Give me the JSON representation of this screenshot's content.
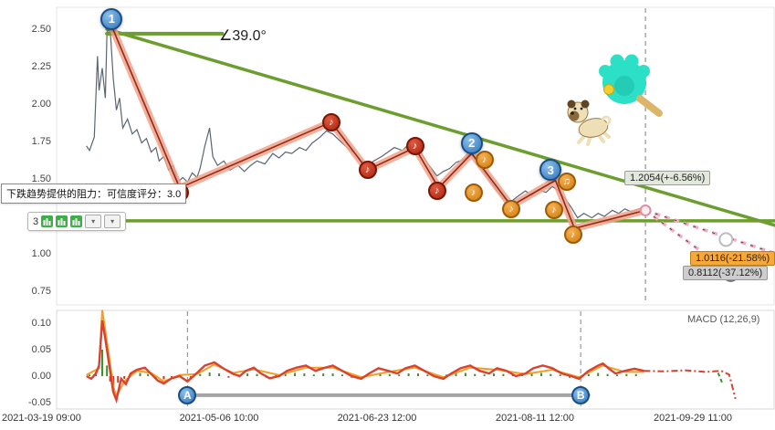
{
  "labels": {
    "tooltip": "下跌趋势提供的阻力：可信度评分：3.0",
    "angle": "∠39.0°",
    "toolbar_count": "3",
    "tag_trend": "1.2054(+-6.56%)",
    "tag_orange": "1.0116(-21.58%)",
    "tag_gray": "0.8112(-37.12%)"
  },
  "colors": {
    "green_line": "#6b9e2e",
    "price_line": "#5a6572",
    "zigzag_fill": "#f2a18b",
    "zigzag_core": "#8f2c15",
    "blue_marker": "#3f8fd2",
    "red_marker": "#c2301a",
    "orange_marker": "#e88e1e",
    "macd_red": "#d84331",
    "macd_orange": "#f59d23",
    "hist_green": "#3f8f2b",
    "hist_red": "#c43a22",
    "dashed_pink": "#f3afc1"
  },
  "chart_data": {
    "type": "line",
    "x_axis": {
      "tick_labels": [
        "2021-03-19 09:00",
        "2021-05-06 10:00",
        "2021-06-23 12:00",
        "2021-08-11 12:00",
        "2021-09-29 11:00"
      ]
    },
    "main_panel": {
      "ylim": [
        0.65,
        2.65
      ],
      "y_ticks": [
        2.5,
        2.25,
        2.0,
        1.75,
        1.5,
        1.25,
        1.0,
        0.75
      ],
      "price_series": [
        [
          0.16,
          1.72
        ],
        [
          0.18,
          1.69
        ],
        [
          0.21,
          1.78
        ],
        [
          0.23,
          2.32
        ],
        [
          0.24,
          2.09
        ],
        [
          0.26,
          2.24
        ],
        [
          0.28,
          2.04
        ],
        [
          0.29,
          2.48
        ],
        [
          0.31,
          2.51
        ],
        [
          0.33,
          2.17
        ],
        [
          0.35,
          1.96
        ],
        [
          0.37,
          2.04
        ],
        [
          0.39,
          1.84
        ],
        [
          0.42,
          1.9
        ],
        [
          0.45,
          1.8
        ],
        [
          0.48,
          1.83
        ],
        [
          0.51,
          1.74
        ],
        [
          0.54,
          1.77
        ],
        [
          0.57,
          1.68
        ],
        [
          0.6,
          1.71
        ],
        [
          0.62,
          1.62
        ],
        [
          0.65,
          1.65
        ],
        [
          0.68,
          1.56
        ],
        [
          0.71,
          1.59
        ],
        [
          0.74,
          1.48
        ],
        [
          0.77,
          1.51
        ],
        [
          0.8,
          1.48
        ],
        [
          0.83,
          1.54
        ],
        [
          0.86,
          1.51
        ],
        [
          0.88,
          1.57
        ],
        [
          0.91,
          1.72
        ],
        [
          0.94,
          1.84
        ],
        [
          0.96,
          1.65
        ],
        [
          0.99,
          1.59
        ],
        [
          1.03,
          1.62
        ],
        [
          1.07,
          1.56
        ],
        [
          1.12,
          1.59
        ],
        [
          1.16,
          1.55
        ],
        [
          1.2,
          1.59
        ],
        [
          1.24,
          1.62
        ],
        [
          1.29,
          1.6
        ],
        [
          1.34,
          1.67
        ],
        [
          1.38,
          1.64
        ],
        [
          1.42,
          1.68
        ],
        [
          1.46,
          1.67
        ],
        [
          1.51,
          1.71
        ],
        [
          1.55,
          1.69
        ],
        [
          1.59,
          1.74
        ],
        [
          1.64,
          1.78
        ],
        [
          1.68,
          1.82
        ],
        [
          1.72,
          1.8
        ],
        [
          1.76,
          1.76
        ],
        [
          1.81,
          1.71
        ],
        [
          1.86,
          1.67
        ],
        [
          1.9,
          1.62
        ],
        [
          1.94,
          1.59
        ],
        [
          1.98,
          1.62
        ],
        [
          2.03,
          1.65
        ],
        [
          2.07,
          1.68
        ],
        [
          2.11,
          1.71
        ],
        [
          2.16,
          1.69
        ],
        [
          2.2,
          1.73
        ],
        [
          2.24,
          1.71
        ],
        [
          2.28,
          1.67
        ],
        [
          2.33,
          1.59
        ],
        [
          2.38,
          1.52
        ],
        [
          2.42,
          1.55
        ],
        [
          2.46,
          1.57
        ],
        [
          2.5,
          1.61
        ],
        [
          2.55,
          1.63
        ],
        [
          2.59,
          1.67
        ],
        [
          2.63,
          1.62
        ],
        [
          2.68,
          1.54
        ],
        [
          2.72,
          1.48
        ],
        [
          2.76,
          1.42
        ],
        [
          2.8,
          1.37
        ],
        [
          2.85,
          1.35
        ],
        [
          2.9,
          1.39
        ],
        [
          2.94,
          1.42
        ],
        [
          2.98,
          1.39
        ],
        [
          3.02,
          1.43
        ],
        [
          3.07,
          1.41
        ],
        [
          3.11,
          1.45
        ],
        [
          3.15,
          1.42
        ],
        [
          3.19,
          1.37
        ],
        [
          3.23,
          1.31
        ],
        [
          3.27,
          1.24
        ],
        [
          3.31,
          1.27
        ],
        [
          3.36,
          1.24
        ],
        [
          3.4,
          1.27
        ],
        [
          3.44,
          1.25
        ],
        [
          3.49,
          1.29
        ],
        [
          3.53,
          1.27
        ],
        [
          3.57,
          1.3
        ],
        [
          3.61,
          1.28
        ],
        [
          3.66,
          1.3
        ],
        [
          3.7,
          1.31
        ]
      ],
      "zigzag_series": [
        [
          0.32,
          2.52
        ],
        [
          0.75,
          1.44
        ],
        [
          1.71,
          1.88
        ],
        [
          1.94,
          1.56
        ],
        [
          2.24,
          1.71
        ],
        [
          2.39,
          1.44
        ],
        [
          2.6,
          1.67
        ],
        [
          2.85,
          1.32
        ],
        [
          3.13,
          1.49
        ],
        [
          3.25,
          1.17
        ],
        [
          3.7,
          1.29
        ]
      ],
      "trend_lines": {
        "top_horizontal": {
          "from": [
            0.29,
            2.47
          ],
          "to": [
            1.02,
            2.47
          ]
        },
        "descending": {
          "from": [
            0.29,
            2.5
          ],
          "to": [
            4.52,
            1.19
          ]
        },
        "support": {
          "from": [
            -0.18,
            1.22
          ],
          "to": [
            4.52,
            1.22
          ]
        }
      },
      "projections": {
        "upper": {
          "from": [
            3.7,
            1.29
          ],
          "to": [
            4.5,
            1.01
          ]
        },
        "lower": {
          "from": [
            3.7,
            1.29
          ],
          "to": [
            4.24,
            0.87
          ]
        }
      },
      "projection_targets": {
        "upper": {
          "u": 4.21,
          "price": 1.095
        },
        "lower": {
          "u": 4.24,
          "price": 0.87
        }
      },
      "current_time_u": 3.7,
      "markers": {
        "numbered": [
          {
            "label": "1",
            "u": 0.32,
            "price": 2.57
          },
          {
            "label": "2",
            "u": 2.6,
            "price": 1.74
          },
          {
            "label": "3",
            "u": 3.1,
            "price": 1.56
          }
        ],
        "red_notes": [
          {
            "symbol": "♪",
            "u": 0.75,
            "price": 1.41
          },
          {
            "symbol": "♪",
            "u": 1.71,
            "price": 1.88
          },
          {
            "symbol": "♪",
            "u": 1.94,
            "price": 1.56
          },
          {
            "symbol": "♪",
            "u": 2.24,
            "price": 1.72
          },
          {
            "symbol": "♪",
            "u": 2.38,
            "price": 1.42
          }
        ],
        "orange_notes": [
          {
            "symbol": "♪",
            "u": 2.61,
            "price": 1.41
          },
          {
            "symbol": "♪",
            "u": 2.68,
            "price": 1.63
          },
          {
            "symbol": "♪",
            "u": 2.85,
            "price": 1.3
          },
          {
            "symbol": "♪",
            "u": 3.12,
            "price": 1.29
          },
          {
            "symbol": "♫",
            "u": 3.2,
            "price": 1.48
          },
          {
            "symbol": "♪",
            "u": 3.24,
            "price": 1.13
          }
        ]
      }
    },
    "macd_panel": {
      "label": "MACD (12,26,9)",
      "ylim": [
        -0.075,
        0.135
      ],
      "y_ticks": [
        0.1,
        0.05,
        0.0,
        -0.05
      ],
      "dea_line": [
        [
          0.16,
          0.0
        ],
        [
          0.19,
          -0.005
        ],
        [
          0.22,
          0.005
        ],
        [
          0.24,
          0.02
        ],
        [
          0.26,
          0.105
        ],
        [
          0.28,
          0.07
        ],
        [
          0.31,
          0.01
        ],
        [
          0.33,
          -0.03
        ],
        [
          0.35,
          -0.045
        ],
        [
          0.38,
          -0.005
        ],
        [
          0.41,
          -0.015
        ],
        [
          0.44,
          0.005
        ],
        [
          0.48,
          0.012
        ],
        [
          0.53,
          0.016
        ],
        [
          0.57,
          0.004
        ],
        [
          0.61,
          -0.008
        ],
        [
          0.65,
          -0.014
        ],
        [
          0.7,
          -0.004
        ],
        [
          0.75,
          0.0
        ],
        [
          0.8,
          -0.01
        ],
        [
          0.86,
          0.006
        ],
        [
          0.91,
          0.02
        ],
        [
          0.97,
          0.026
        ],
        [
          1.03,
          0.014
        ],
        [
          1.09,
          0.004
        ],
        [
          1.13,
          0.0
        ],
        [
          1.17,
          0.01
        ],
        [
          1.22,
          0.016
        ],
        [
          1.26,
          0.006
        ],
        [
          1.32,
          -0.004
        ],
        [
          1.38,
          0.0
        ],
        [
          1.43,
          0.01
        ],
        [
          1.49,
          0.016
        ],
        [
          1.55,
          0.02
        ],
        [
          1.61,
          0.01
        ],
        [
          1.66,
          0.015
        ],
        [
          1.72,
          0.02
        ],
        [
          1.78,
          0.01
        ],
        [
          1.84,
          0.0
        ],
        [
          1.9,
          -0.005
        ],
        [
          1.95,
          0.005
        ],
        [
          2.01,
          0.015
        ],
        [
          2.07,
          0.01
        ],
        [
          2.13,
          0.005
        ],
        [
          2.18,
          0.015
        ],
        [
          2.24,
          0.02
        ],
        [
          2.3,
          0.01
        ],
        [
          2.36,
          0.0
        ],
        [
          2.42,
          -0.005
        ],
        [
          2.47,
          0.005
        ],
        [
          2.53,
          0.015
        ],
        [
          2.59,
          0.02
        ],
        [
          2.65,
          0.01
        ],
        [
          2.71,
          0.005
        ],
        [
          2.76,
          0.015
        ],
        [
          2.82,
          0.01
        ],
        [
          2.88,
          0.0
        ],
        [
          2.94,
          0.005
        ],
        [
          2.99,
          0.015
        ],
        [
          3.05,
          0.02
        ],
        [
          3.11,
          0.015
        ],
        [
          3.17,
          0.005
        ],
        [
          3.23,
          0.0
        ],
        [
          3.28,
          -0.005
        ],
        [
          3.34,
          0.01
        ],
        [
          3.4,
          0.02
        ],
        [
          3.43,
          0.024
        ],
        [
          3.47,
          0.014
        ],
        [
          3.51,
          0.005
        ],
        [
          3.57,
          0.01
        ],
        [
          3.63,
          0.014
        ],
        [
          3.69,
          0.01
        ]
      ],
      "dif_line": [
        [
          0.16,
          0.002
        ],
        [
          0.24,
          0.015
        ],
        [
          0.26,
          0.125
        ],
        [
          0.3,
          0.045
        ],
        [
          0.33,
          -0.02
        ],
        [
          0.35,
          -0.038
        ],
        [
          0.4,
          -0.01
        ],
        [
          0.48,
          0.01
        ],
        [
          0.57,
          0.006
        ],
        [
          0.65,
          -0.01
        ],
        [
          0.75,
          0.002
        ],
        [
          0.86,
          0.004
        ],
        [
          0.97,
          0.022
        ],
        [
          1.09,
          0.006
        ],
        [
          1.22,
          0.013
        ],
        [
          1.38,
          0.002
        ],
        [
          1.55,
          0.016
        ],
        [
          1.72,
          0.016
        ],
        [
          1.9,
          -0.002
        ],
        [
          2.07,
          0.008
        ],
        [
          2.24,
          0.016
        ],
        [
          2.42,
          -0.002
        ],
        [
          2.59,
          0.016
        ],
        [
          2.76,
          0.012
        ],
        [
          2.94,
          0.004
        ],
        [
          3.11,
          0.012
        ],
        [
          3.28,
          -0.002
        ],
        [
          3.43,
          0.02
        ],
        [
          3.57,
          0.008
        ],
        [
          3.69,
          0.008
        ]
      ],
      "tail_line": [
        [
          3.69,
          0.01
        ],
        [
          3.82,
          0.009
        ],
        [
          3.95,
          0.011
        ],
        [
          4.08,
          0.008
        ],
        [
          4.18,
          0.01
        ],
        [
          4.23,
          0.003
        ],
        [
          4.27,
          -0.043
        ]
      ],
      "tail_green": [
        [
          4.16,
          0.006
        ],
        [
          4.19,
          -0.016
        ]
      ],
      "histogram": [
        [
          0.18,
          0.003
        ],
        [
          0.22,
          0.008
        ],
        [
          0.26,
          0.05
        ],
        [
          0.29,
          0.02
        ],
        [
          0.31,
          -0.01
        ],
        [
          0.33,
          -0.028
        ],
        [
          0.36,
          -0.012
        ],
        [
          0.4,
          -0.005
        ],
        [
          0.44,
          0.004
        ],
        [
          0.5,
          0.006
        ],
        [
          0.55,
          0.004
        ],
        [
          0.6,
          -0.004
        ],
        [
          0.65,
          -0.006
        ],
        [
          0.7,
          -0.003
        ],
        [
          0.76,
          0.003
        ],
        [
          0.82,
          -0.004
        ],
        [
          0.88,
          0.004
        ],
        [
          0.94,
          0.007
        ],
        [
          1.0,
          0.005
        ],
        [
          1.06,
          -0.003
        ],
        [
          1.12,
          0.003
        ],
        [
          1.18,
          0.005
        ],
        [
          1.24,
          0.004
        ],
        [
          1.3,
          -0.003
        ],
        [
          1.36,
          0.003
        ],
        [
          1.42,
          0.005
        ],
        [
          1.48,
          0.006
        ],
        [
          1.54,
          0.005
        ],
        [
          1.6,
          0.003
        ],
        [
          1.66,
          0.005
        ],
        [
          1.72,
          0.005
        ],
        [
          1.78,
          0.003
        ],
        [
          1.84,
          -0.003
        ],
        [
          1.9,
          -0.004
        ],
        [
          1.96,
          0.003
        ],
        [
          2.02,
          0.005
        ],
        [
          2.08,
          0.004
        ],
        [
          2.14,
          0.003
        ],
        [
          2.2,
          0.005
        ],
        [
          2.26,
          0.005
        ],
        [
          2.32,
          0.003
        ],
        [
          2.38,
          -0.003
        ],
        [
          2.44,
          0.003
        ],
        [
          2.5,
          0.005
        ],
        [
          2.56,
          0.006
        ],
        [
          2.62,
          0.004
        ],
        [
          2.68,
          0.003
        ],
        [
          2.74,
          0.005
        ],
        [
          2.8,
          0.004
        ],
        [
          2.86,
          0.003
        ],
        [
          2.92,
          0.003
        ],
        [
          2.98,
          0.005
        ],
        [
          3.04,
          0.006
        ],
        [
          3.1,
          0.004
        ],
        [
          3.16,
          0.003
        ],
        [
          3.22,
          -0.003
        ],
        [
          3.28,
          -0.004
        ],
        [
          3.34,
          0.004
        ],
        [
          3.4,
          0.006
        ],
        [
          3.46,
          0.004
        ],
        [
          3.52,
          0.003
        ],
        [
          3.58,
          0.004
        ],
        [
          3.64,
          0.004
        ]
      ],
      "baseline": {
        "u1": 0.78,
        "u2": 3.34,
        "v": -0.036
      },
      "ab_markers": [
        {
          "label": "A",
          "u": 0.8
        },
        {
          "label": "B",
          "u": 3.29
        }
      ],
      "dashed_verticals_u": [
        0.8,
        3.29
      ]
    }
  }
}
